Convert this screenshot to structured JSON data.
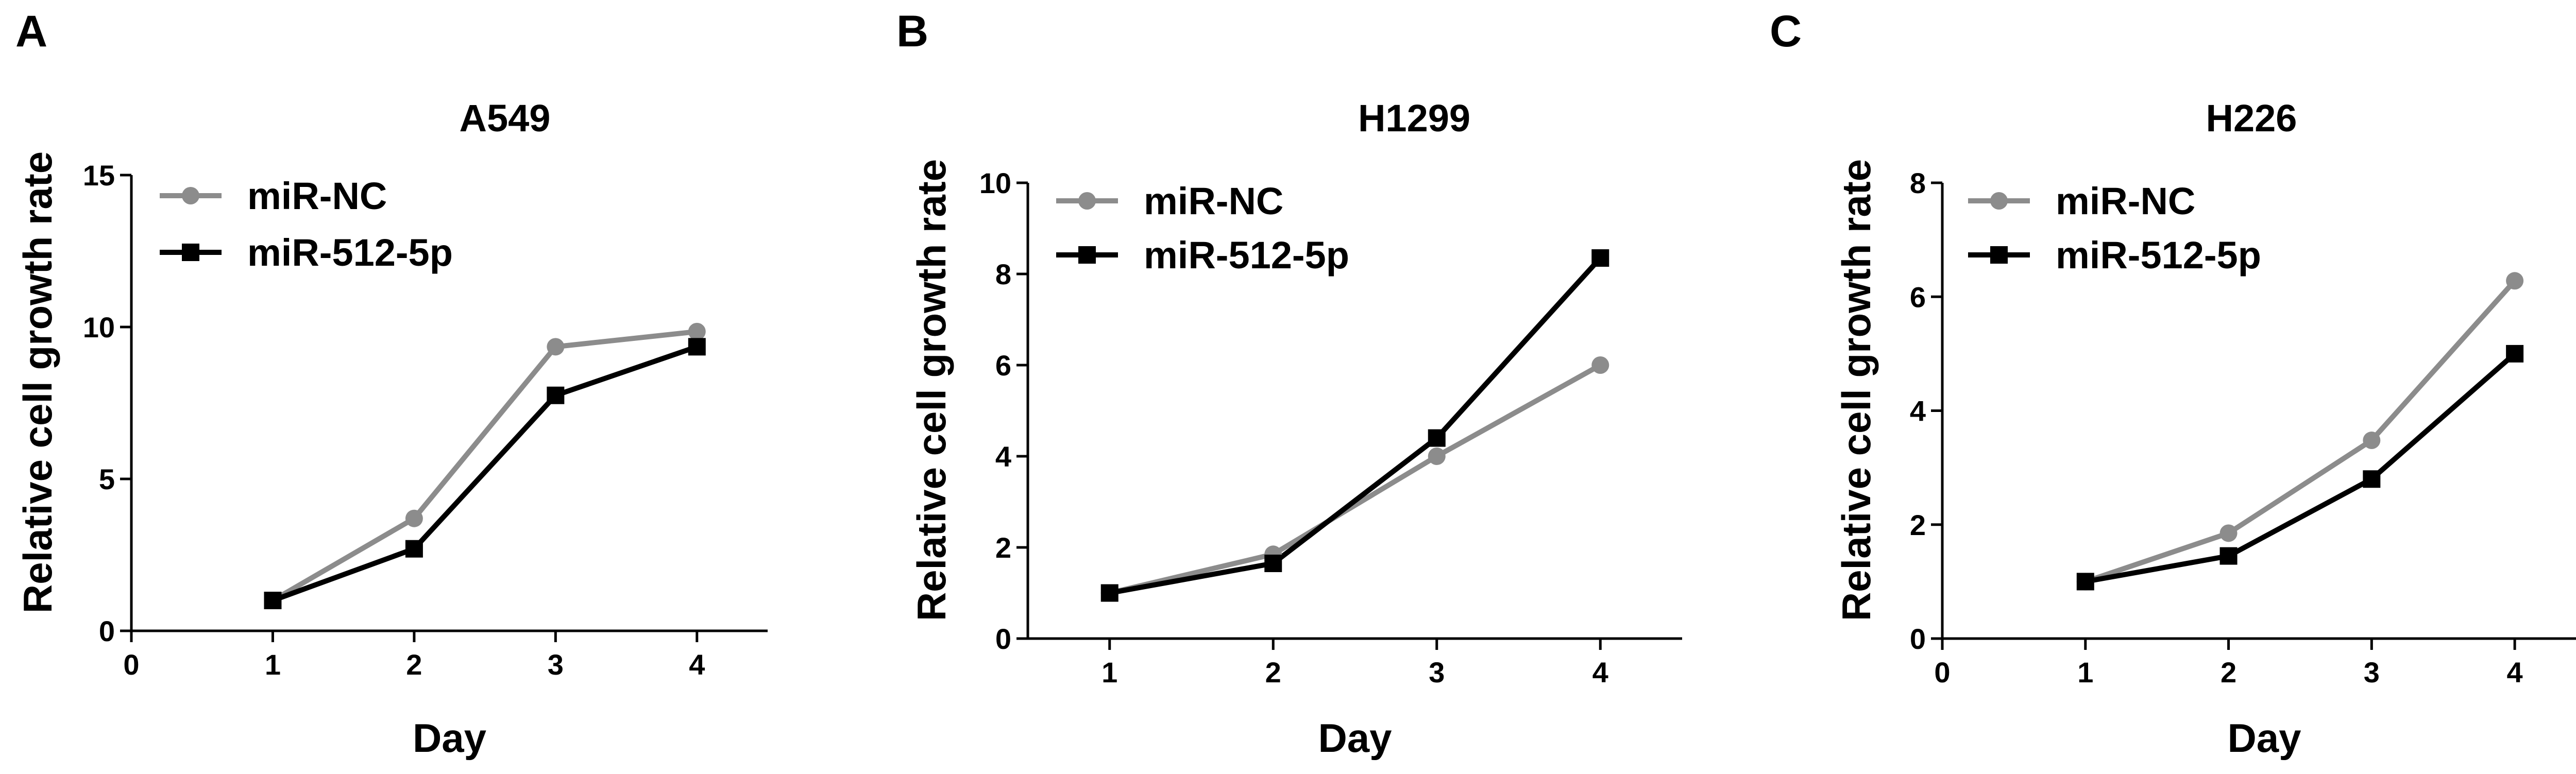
{
  "chart_data": [
    {
      "type": "line",
      "panel": "A",
      "title": "A549",
      "xlabel": "Day",
      "ylabel": "Relative cell growth rate",
      "xlim": [
        0,
        4.5
      ],
      "ylim": [
        0,
        15
      ],
      "xticks": [
        0,
        1,
        2,
        3,
        4
      ],
      "yticks": [
        0,
        5,
        10,
        15
      ],
      "x_axis_starts_at": 0,
      "legend": "top-left",
      "series": [
        {
          "name": "miR-NC",
          "marker": "circle",
          "color": "#8c8c8c",
          "x": [
            1,
            2,
            3,
            4
          ],
          "y": [
            1.0,
            3.7,
            9.35,
            9.85
          ]
        },
        {
          "name": "miR-512-5p",
          "marker": "square",
          "color": "#000000",
          "x": [
            1,
            2,
            3,
            4
          ],
          "y": [
            1.0,
            2.7,
            7.75,
            9.35
          ]
        }
      ]
    },
    {
      "type": "line",
      "panel": "B",
      "title": "H1299",
      "xlabel": "Day",
      "ylabel": "Relative cell growth rate",
      "xlim": [
        0.5,
        4.5
      ],
      "ylim": [
        0,
        10
      ],
      "xticks": [
        1,
        2,
        3,
        4
      ],
      "yticks": [
        0,
        2,
        4,
        6,
        8,
        10
      ],
      "x_axis_starts_at": 0.5,
      "legend": "top-left",
      "series": [
        {
          "name": "miR-NC",
          "marker": "circle",
          "color": "#8c8c8c",
          "x": [
            1,
            2,
            3,
            4
          ],
          "y": [
            1.0,
            1.85,
            4.0,
            6.0
          ]
        },
        {
          "name": "miR-512-5p",
          "marker": "square",
          "color": "#000000",
          "x": [
            1,
            2,
            3,
            4
          ],
          "y": [
            1.0,
            1.65,
            4.4,
            8.35
          ]
        }
      ]
    },
    {
      "type": "line",
      "panel": "C",
      "title": "H226",
      "xlabel": "Day",
      "ylabel": "Relative cell growth rate",
      "xlim": [
        0,
        4.5
      ],
      "ylim": [
        0,
        8
      ],
      "xticks": [
        0,
        1,
        2,
        3,
        4
      ],
      "yticks": [
        0,
        2,
        4,
        6,
        8
      ],
      "x_axis_starts_at": 0,
      "legend": "top-left",
      "series": [
        {
          "name": "miR-NC",
          "marker": "circle",
          "color": "#8c8c8c",
          "x": [
            1,
            2,
            3,
            4
          ],
          "y": [
            1.0,
            1.85,
            3.48,
            6.28
          ]
        },
        {
          "name": "miR-512-5p",
          "marker": "square",
          "color": "#000000",
          "x": [
            1,
            2,
            3,
            4
          ],
          "y": [
            1.0,
            1.45,
            2.8,
            5.0
          ]
        }
      ]
    }
  ]
}
